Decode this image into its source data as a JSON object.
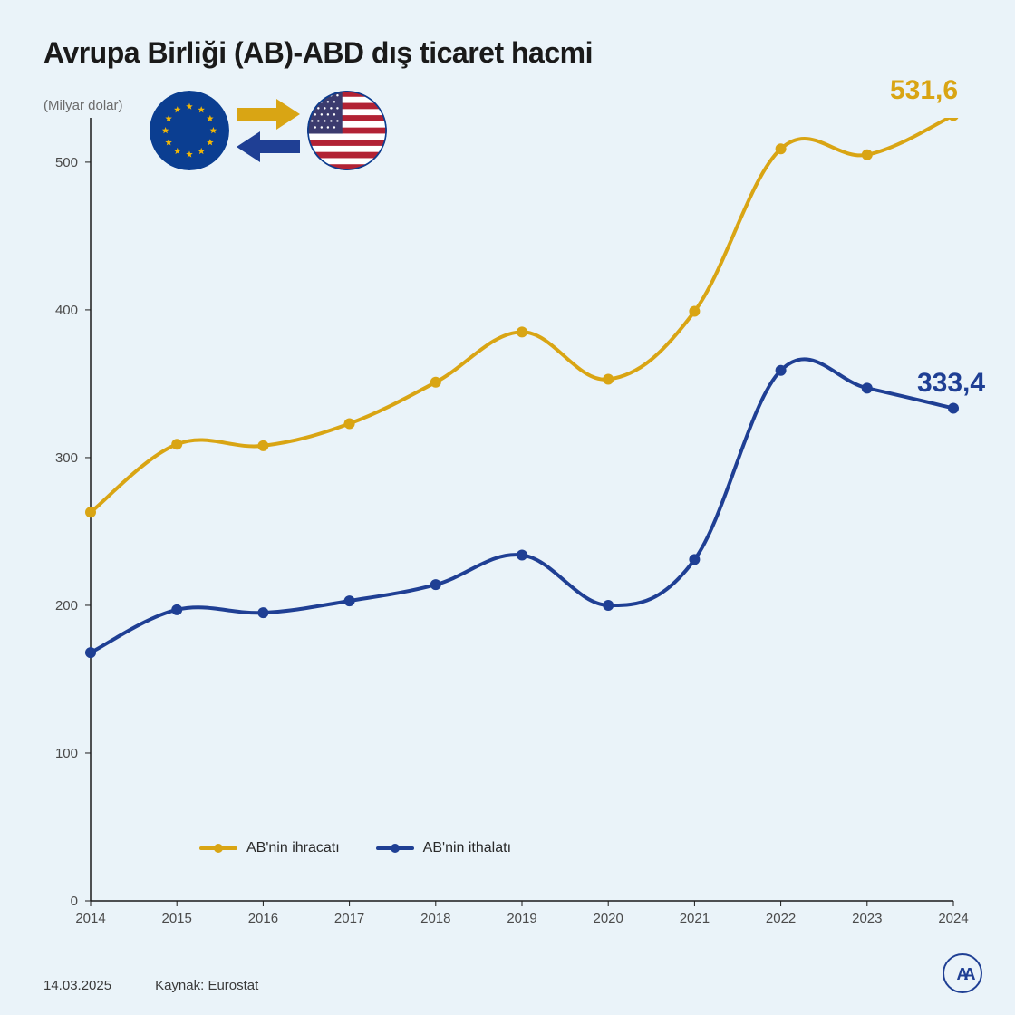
{
  "title": "Avrupa Birliği (AB)-ABD dış ticaret hacmi",
  "y_axis_unit": "(Milyar dolar)",
  "footer_date": "14.03.2025",
  "footer_source": "Kaynak: Eurostat",
  "colors": {
    "background": "#eaf3f9",
    "title": "#1a1a1a",
    "axis_text": "#4a4a4a",
    "axis_line": "#1a1a1a",
    "series_export": "#d9a514",
    "series_import": "#1f3f94",
    "eu_blue": "#0b3e91",
    "eu_gold": "#f2b705",
    "us_red": "#b22234",
    "us_blue": "#3c3b6e"
  },
  "chart": {
    "type": "line",
    "years": [
      2014,
      2015,
      2016,
      2017,
      2018,
      2019,
      2020,
      2021,
      2022,
      2023,
      2024
    ],
    "ylim": [
      0,
      530
    ],
    "ytick_step": 100,
    "yticks": [
      0,
      100,
      200,
      300,
      400,
      500
    ],
    "line_width": 4,
    "marker_radius": 6,
    "series": [
      {
        "key": "export",
        "label": "AB'nin ihracatı",
        "color": "#d9a514",
        "values": [
          263,
          309,
          308,
          323,
          351,
          385,
          353,
          399,
          509,
          505,
          531.6
        ],
        "end_label": "531,6"
      },
      {
        "key": "import",
        "label": "AB'nin ithalatı",
        "color": "#1f3f94",
        "values": [
          168,
          197,
          195,
          203,
          214,
          234,
          200,
          231,
          359,
          347,
          333.4
        ],
        "end_label": "333,4"
      }
    ]
  },
  "legend_labels": {
    "export": "AB'nin ihracatı",
    "import": "AB'nin ithalatı"
  }
}
